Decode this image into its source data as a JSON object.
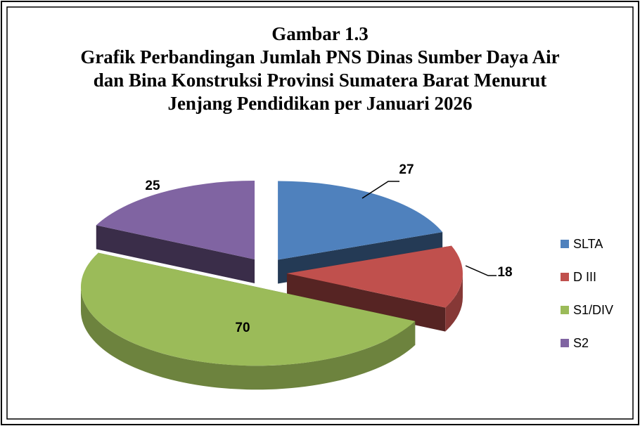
{
  "chart_data": {
    "type": "pie3d",
    "title": "Gambar 1.3",
    "subtitle": "Grafik Perbandingan Jumlah PNS Dinas Sumber Daya Air dan Bina Konstruksi Provinsi Sumatera Barat Menurut Jenjang Pendidikan per Januari 2026",
    "categories": [
      "SLTA",
      "D III",
      "S1/DIV",
      "S2"
    ],
    "values": [
      27,
      18,
      70,
      25
    ],
    "colors": [
      "#4f81bd",
      "#c0504d",
      "#9bbb59",
      "#8064a2"
    ],
    "legend": "right"
  }
}
